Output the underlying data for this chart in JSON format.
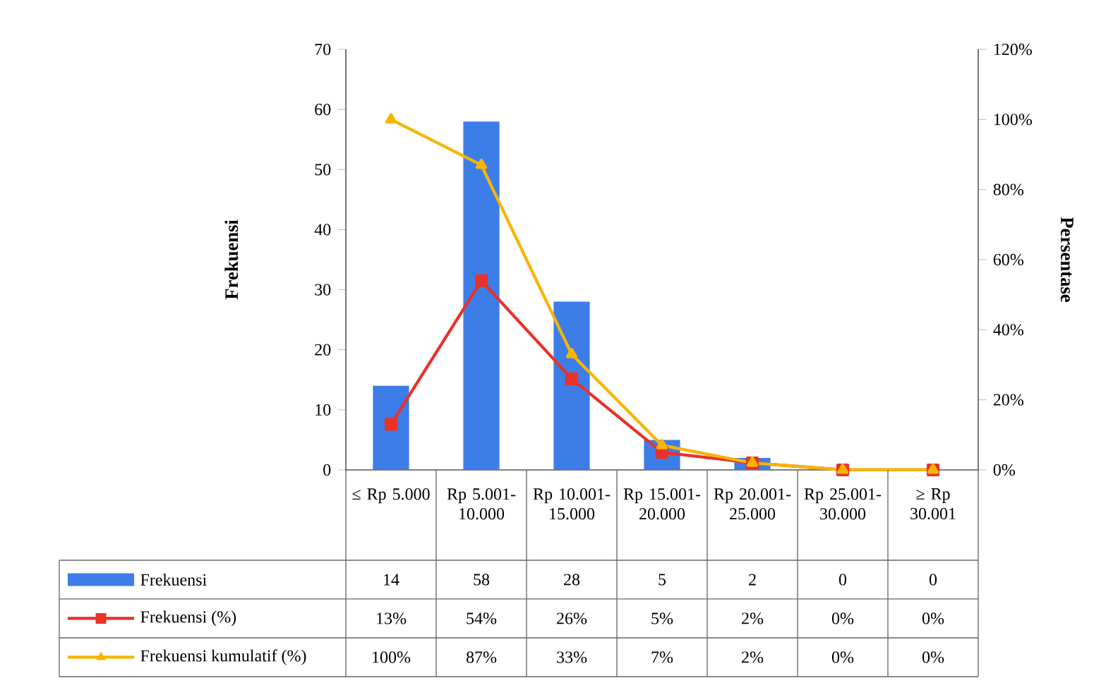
{
  "chart_data": {
    "type": "bar",
    "categories": [
      "≤ Rp 5.000",
      "Rp 5.001-10.000",
      "Rp 10.001-15.000",
      "Rp 15.001-20.000",
      "Rp 20.001-25.000",
      "Rp 25.001-30.000",
      "≥ Rp 30.001"
    ],
    "ylabel": "Frekuensi",
    "y2label": "Persentase",
    "ylim": [
      0,
      70
    ],
    "yticks": [
      0,
      10,
      20,
      30,
      40,
      50,
      60,
      70
    ],
    "y2lim": [
      0,
      120
    ],
    "y2ticks": [
      {
        "value": 0,
        "label": "0%"
      },
      {
        "value": 20,
        "label": "20%"
      },
      {
        "value": 40,
        "label": "40%"
      },
      {
        "value": 60,
        "label": "60%"
      },
      {
        "value": 80,
        "label": "80%"
      },
      {
        "value": 100,
        "label": "100%"
      },
      {
        "value": 120,
        "label": "120%"
      }
    ],
    "legend": "bottom",
    "series": [
      {
        "name": "Frekuensi",
        "color": "#3d7de8",
        "values": [
          14,
          58,
          28,
          5,
          2,
          0,
          0
        ],
        "value_labels": [
          "14",
          "58",
          "28",
          "5",
          "2",
          "0",
          "0"
        ]
      },
      {
        "name": "Frekuensi (%)",
        "type": "line",
        "axis": "y2",
        "marker": "square",
        "color": "#e8322a",
        "values": [
          13,
          54,
          26,
          5,
          2,
          0,
          0
        ],
        "value_labels": [
          "13%",
          "54%",
          "26%",
          "5%",
          "2%",
          "0%",
          "0%"
        ]
      },
      {
        "name": "Frekuensi kumulatif (%)",
        "type": "line",
        "axis": "y2",
        "marker": "triangle",
        "color": "#f7b500",
        "values": [
          100,
          87,
          33,
          7,
          2,
          0,
          0
        ],
        "value_labels": [
          "100%",
          "87%",
          "33%",
          "7%",
          "2%",
          "0%",
          "0%"
        ]
      }
    ]
  }
}
